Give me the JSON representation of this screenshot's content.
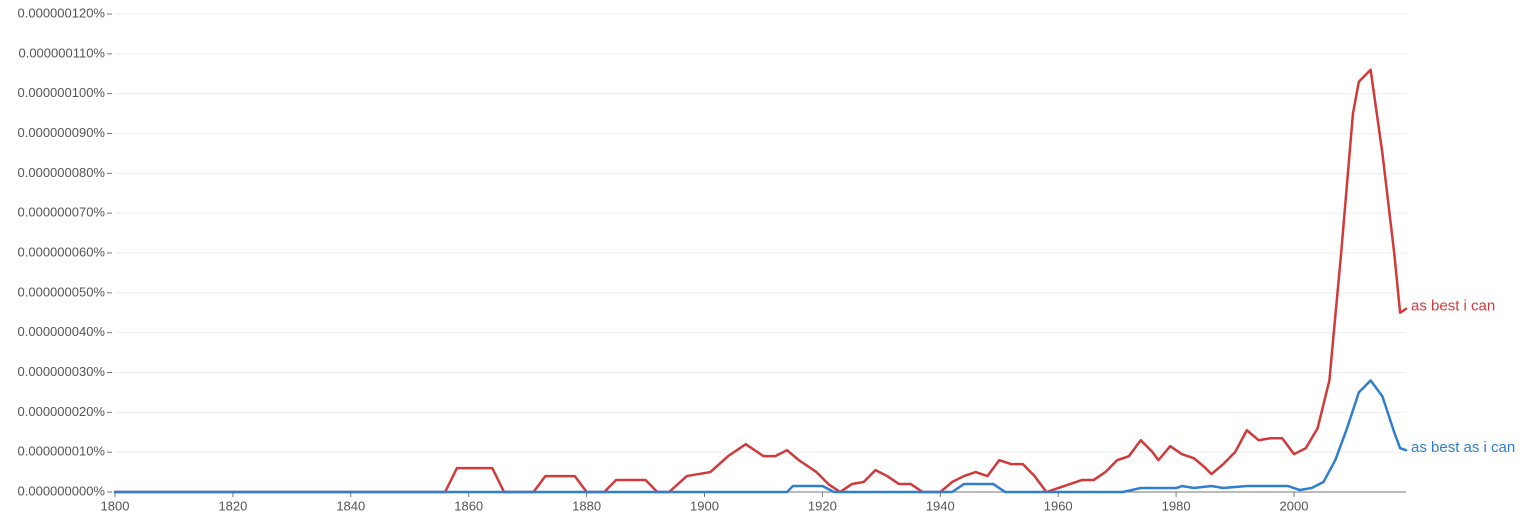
{
  "chart_data": {
    "type": "line",
    "xlim": [
      1800,
      2019
    ],
    "xticks": [
      1800,
      1820,
      1840,
      1860,
      1880,
      1900,
      1920,
      1940,
      1960,
      1980,
      2000
    ],
    "ylim": [
      0,
      1.2e-07
    ],
    "yticks": [
      {
        "value": 0,
        "label": "0.000000000%"
      },
      {
        "value": 1e-08,
        "label": "0.000000010%"
      },
      {
        "value": 2e-08,
        "label": "0.000000020%"
      },
      {
        "value": 3e-08,
        "label": "0.000000030%"
      },
      {
        "value": 4e-08,
        "label": "0.000000040%"
      },
      {
        "value": 5e-08,
        "label": "0.000000050%"
      },
      {
        "value": 6e-08,
        "label": "0.000000060%"
      },
      {
        "value": 7e-08,
        "label": "0.000000070%"
      },
      {
        "value": 8e-08,
        "label": "0.000000080%"
      },
      {
        "value": 9e-08,
        "label": "0.000000090%"
      },
      {
        "value": 1e-07,
        "label": "0.000000100%"
      },
      {
        "value": 1.1e-07,
        "label": "0.000000110%"
      },
      {
        "value": 1.2e-07,
        "label": "0.000000120%"
      }
    ],
    "grid": true,
    "series": [
      {
        "name": "as best i can",
        "color": "#d03a3a",
        "x": [
          1800,
          1856,
          1858,
          1864,
          1866,
          1871,
          1873,
          1878,
          1880,
          1883,
          1885,
          1890,
          1892,
          1894,
          1897,
          1901,
          1904,
          1907,
          1910,
          1912,
          1914,
          1916,
          1919,
          1921,
          1923,
          1925,
          1927,
          1929,
          1931,
          1933,
          1935,
          1937,
          1940,
          1942,
          1944,
          1946,
          1948,
          1950,
          1952,
          1954,
          1956,
          1958,
          1960,
          1962,
          1964,
          1966,
          1968,
          1970,
          1972,
          1974,
          1976,
          1977,
          1979,
          1981,
          1983,
          1985,
          1986,
          1988,
          1990,
          1992,
          1994,
          1996,
          1998,
          2000,
          2002,
          2004,
          2006,
          2008,
          2010,
          2011,
          2013,
          2015,
          2017,
          2018,
          2019
        ],
        "values": [
          0,
          0,
          6e-09,
          6e-09,
          0,
          0,
          4e-09,
          4e-09,
          0,
          0,
          3e-09,
          3e-09,
          0,
          0,
          4e-09,
          5e-09,
          9e-09,
          1.2e-08,
          9e-09,
          9e-09,
          1.05e-08,
          8e-09,
          5e-09,
          2e-09,
          0,
          2e-09,
          2.5e-09,
          5.5e-09,
          4e-09,
          2e-09,
          2e-09,
          0,
          0,
          2.5e-09,
          4e-09,
          5e-09,
          4e-09,
          8e-09,
          7e-09,
          7e-09,
          4e-09,
          0,
          1e-09,
          2e-09,
          3e-09,
          3e-09,
          5e-09,
          8e-09,
          9e-09,
          1.3e-08,
          1e-08,
          8e-09,
          1.15e-08,
          9.5e-09,
          8.5e-09,
          6e-09,
          4.5e-09,
          7e-09,
          1e-08,
          1.55e-08,
          1.3e-08,
          1.35e-08,
          1.35e-08,
          9.5e-09,
          1.1e-08,
          1.6e-08,
          2.8e-08,
          6e-08,
          9.5e-08,
          1.03e-07,
          1.06e-07,
          8.5e-08,
          6e-08,
          4.5e-08,
          4.6e-08
        ]
      },
      {
        "name": "as best as i can",
        "color": "#2f7fce",
        "x": [
          1800,
          1914,
          1915,
          1920,
          1922,
          1942,
          1944,
          1949,
          1951,
          1971,
          1974,
          1980,
          1981,
          1983,
          1986,
          1988,
          1992,
          1994,
          1999,
          2001,
          2003,
          2005,
          2007,
          2009,
          2011,
          2013,
          2015,
          2017,
          2018,
          2019
        ],
        "values": [
          0,
          0,
          1.5e-09,
          1.5e-09,
          0,
          0,
          2e-09,
          2e-09,
          0,
          0,
          1e-09,
          1e-09,
          1.5e-09,
          1e-09,
          1.5e-09,
          1e-09,
          1.5e-09,
          1.5e-09,
          1.5e-09,
          5e-10,
          1e-09,
          2.5e-09,
          8e-09,
          1.6e-08,
          2.5e-08,
          2.8e-08,
          2.4e-08,
          1.5e-08,
          1.1e-08,
          1.05e-08
        ]
      }
    ]
  }
}
